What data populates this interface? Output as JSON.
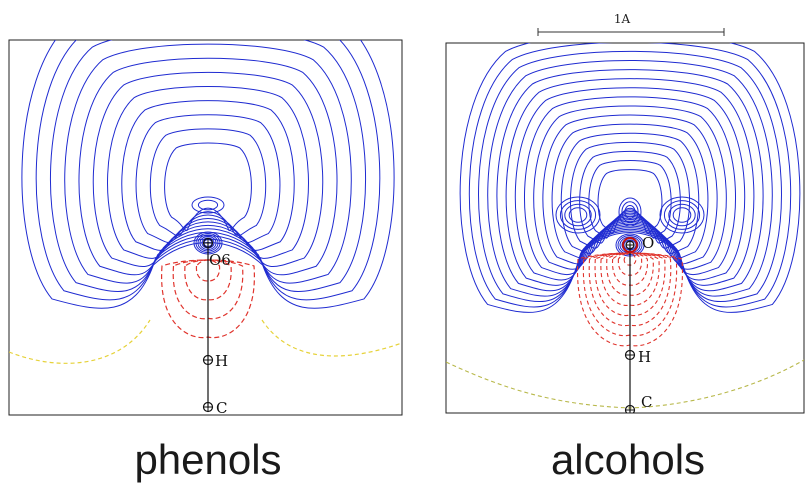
{
  "colors": {
    "positive_contour": "#1f2bd1",
    "negative_contour": "#e0342d",
    "zero_contour": "#e6d23a",
    "frame": "#222222"
  },
  "panels": [
    {
      "caption": "phenols",
      "atoms": {
        "oxygen": "O6",
        "hydrogen": "H",
        "carbon": "C"
      }
    },
    {
      "caption": "alcohols",
      "atoms": {
        "oxygen": "O",
        "hydrogen": "H",
        "carbon": "C"
      },
      "scale_bar": "1A"
    }
  ]
}
